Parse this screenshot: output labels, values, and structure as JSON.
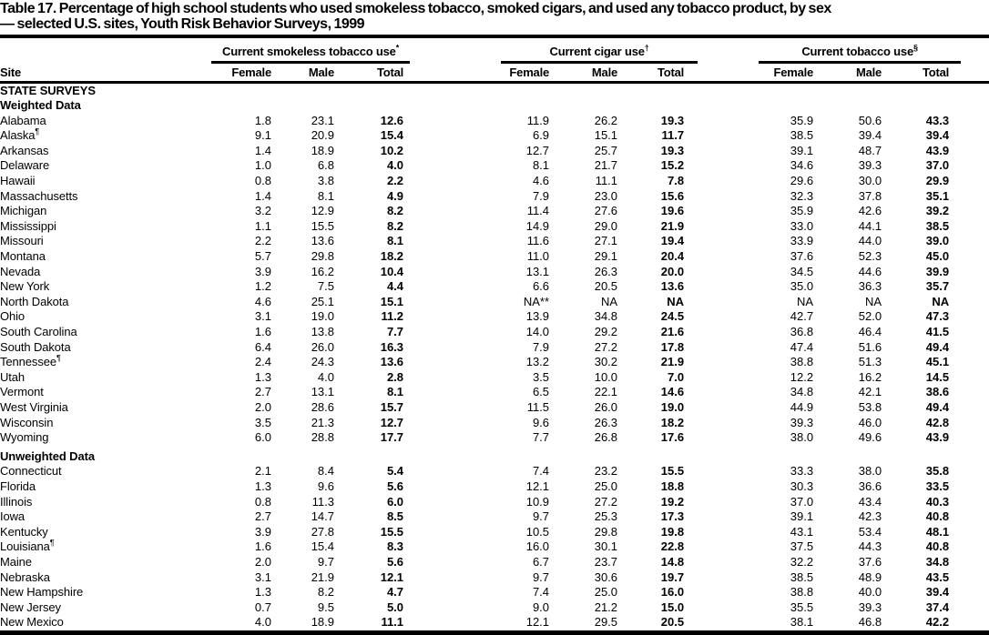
{
  "title": {
    "line1": "Table 17. Percentage of high school students who used smokeless tobacco, smoked cigars, and used any tobacco product, by sex",
    "line2": "— selected U.S. sites, Youth Risk Behavior Surveys, 1999"
  },
  "colors": {
    "text": "#000000",
    "background": "#ffffff",
    "rule": "#000000"
  },
  "table": {
    "site_header": "Site",
    "col_headers": [
      "Female",
      "Male",
      "Total"
    ],
    "groups": [
      {
        "label": "Current smokeless tobacco use",
        "sup": "*"
      },
      {
        "label": "Current cigar use",
        "sup": "†"
      },
      {
        "label": "Current tobacco use",
        "sup": "§"
      }
    ],
    "sections": [
      {
        "label": "STATE SURVEYS",
        "rows": []
      },
      {
        "label": "Weighted Data",
        "rows": [
          {
            "site": "Alabama",
            "site_sup": "",
            "values": [
              "1.8",
              "23.1",
              "12.6",
              "11.9",
              "26.2",
              "19.3",
              "35.9",
              "50.6",
              "43.3"
            ]
          },
          {
            "site": "Alaska",
            "site_sup": "¶",
            "values": [
              "9.1",
              "20.9",
              "15.4",
              "6.9",
              "15.1",
              "11.7",
              "38.5",
              "39.4",
              "39.4"
            ]
          },
          {
            "site": "Arkansas",
            "site_sup": "",
            "values": [
              "1.4",
              "18.9",
              "10.2",
              "12.7",
              "25.7",
              "19.3",
              "39.1",
              "48.7",
              "43.9"
            ]
          },
          {
            "site": "Delaware",
            "site_sup": "",
            "values": [
              "1.0",
              "6.8",
              "4.0",
              "8.1",
              "21.7",
              "15.2",
              "34.6",
              "39.3",
              "37.0"
            ]
          },
          {
            "site": "Hawaii",
            "site_sup": "",
            "values": [
              "0.8",
              "3.8",
              "2.2",
              "4.6",
              "11.1",
              "7.8",
              "29.6",
              "30.0",
              "29.9"
            ]
          },
          {
            "site": "Massachusetts",
            "site_sup": "",
            "values": [
              "1.4",
              "8.1",
              "4.9",
              "7.9",
              "23.0",
              "15.6",
              "32.3",
              "37.8",
              "35.1"
            ]
          },
          {
            "site": "Michigan",
            "site_sup": "",
            "values": [
              "3.2",
              "12.9",
              "8.2",
              "11.4",
              "27.6",
              "19.6",
              "35.9",
              "42.6",
              "39.2"
            ]
          },
          {
            "site": "Mississippi",
            "site_sup": "",
            "values": [
              "1.1",
              "15.5",
              "8.2",
              "14.9",
              "29.0",
              "21.9",
              "33.0",
              "44.1",
              "38.5"
            ]
          },
          {
            "site": "Missouri",
            "site_sup": "",
            "values": [
              "2.2",
              "13.6",
              "8.1",
              "11.6",
              "27.1",
              "19.4",
              "33.9",
              "44.0",
              "39.0"
            ]
          },
          {
            "site": "Montana",
            "site_sup": "",
            "values": [
              "5.7",
              "29.8",
              "18.2",
              "11.0",
              "29.1",
              "20.4",
              "37.6",
              "52.3",
              "45.0"
            ]
          },
          {
            "site": "Nevada",
            "site_sup": "",
            "values": [
              "3.9",
              "16.2",
              "10.4",
              "13.1",
              "26.3",
              "20.0",
              "34.5",
              "44.6",
              "39.9"
            ]
          },
          {
            "site": "New York",
            "site_sup": "",
            "values": [
              "1.2",
              "7.5",
              "4.4",
              "6.6",
              "20.5",
              "13.6",
              "35.0",
              "36.3",
              "35.7"
            ]
          },
          {
            "site": "North Dakota",
            "site_sup": "",
            "values": [
              "4.6",
              "25.1",
              "15.1",
              "NA**",
              "NA",
              "NA",
              "NA",
              "NA",
              "NA"
            ]
          },
          {
            "site": "Ohio",
            "site_sup": "",
            "values": [
              "3.1",
              "19.0",
              "11.2",
              "13.9",
              "34.8",
              "24.5",
              "42.7",
              "52.0",
              "47.3"
            ]
          },
          {
            "site": "South Carolina",
            "site_sup": "",
            "values": [
              "1.6",
              "13.8",
              "7.7",
              "14.0",
              "29.2",
              "21.6",
              "36.8",
              "46.4",
              "41.5"
            ]
          },
          {
            "site": "South Dakota",
            "site_sup": "",
            "values": [
              "6.4",
              "26.0",
              "16.3",
              "7.9",
              "27.2",
              "17.8",
              "47.4",
              "51.6",
              "49.4"
            ]
          },
          {
            "site": "Tennessee",
            "site_sup": "¶",
            "values": [
              "2.4",
              "24.3",
              "13.6",
              "13.2",
              "30.2",
              "21.9",
              "38.8",
              "51.3",
              "45.1"
            ]
          },
          {
            "site": "Utah",
            "site_sup": "",
            "values": [
              "1.3",
              "4.0",
              "2.8",
              "3.5",
              "10.0",
              "7.0",
              "12.2",
              "16.2",
              "14.5"
            ]
          },
          {
            "site": "Vermont",
            "site_sup": "",
            "values": [
              "2.7",
              "13.1",
              "8.1",
              "6.5",
              "22.1",
              "14.6",
              "34.8",
              "42.1",
              "38.6"
            ]
          },
          {
            "site": "West Virginia",
            "site_sup": "",
            "values": [
              "2.0",
              "28.6",
              "15.7",
              "11.5",
              "26.0",
              "19.0",
              "44.9",
              "53.8",
              "49.4"
            ]
          },
          {
            "site": "Wisconsin",
            "site_sup": "",
            "values": [
              "3.5",
              "21.3",
              "12.7",
              "9.6",
              "26.3",
              "18.2",
              "39.3",
              "46.0",
              "42.8"
            ]
          },
          {
            "site": "Wyoming",
            "site_sup": "",
            "values": [
              "6.0",
              "28.8",
              "17.7",
              "7.7",
              "26.8",
              "17.6",
              "38.0",
              "49.6",
              "43.9"
            ]
          }
        ]
      },
      {
        "label": "Unweighted Data",
        "rows": [
          {
            "site": "Connecticut",
            "site_sup": "",
            "values": [
              "2.1",
              "8.4",
              "5.4",
              "7.4",
              "23.2",
              "15.5",
              "33.3",
              "38.0",
              "35.8"
            ]
          },
          {
            "site": "Florida",
            "site_sup": "",
            "values": [
              "1.3",
              "9.6",
              "5.6",
              "12.1",
              "25.0",
              "18.8",
              "30.3",
              "36.6",
              "33.5"
            ]
          },
          {
            "site": "Illinois",
            "site_sup": "",
            "values": [
              "0.8",
              "11.3",
              "6.0",
              "10.9",
              "27.2",
              "19.2",
              "37.0",
              "43.4",
              "40.3"
            ]
          },
          {
            "site": "Iowa",
            "site_sup": "",
            "values": [
              "2.7",
              "14.7",
              "8.5",
              "9.7",
              "25.3",
              "17.3",
              "39.1",
              "42.3",
              "40.8"
            ]
          },
          {
            "site": "Kentucky",
            "site_sup": "",
            "values": [
              "3.9",
              "27.8",
              "15.5",
              "10.5",
              "29.8",
              "19.8",
              "43.1",
              "53.4",
              "48.1"
            ]
          },
          {
            "site": "Louisiana",
            "site_sup": "¶",
            "values": [
              "1.6",
              "15.4",
              "8.3",
              "16.0",
              "30.1",
              "22.8",
              "37.5",
              "44.3",
              "40.8"
            ]
          },
          {
            "site": "Maine",
            "site_sup": "",
            "values": [
              "2.0",
              "9.7",
              "5.6",
              "6.7",
              "23.7",
              "14.8",
              "32.2",
              "37.6",
              "34.8"
            ]
          },
          {
            "site": "Nebraska",
            "site_sup": "",
            "values": [
              "3.1",
              "21.9",
              "12.1",
              "9.7",
              "30.6",
              "19.7",
              "38.5",
              "48.9",
              "43.5"
            ]
          },
          {
            "site": "New Hampshire",
            "site_sup": "",
            "values": [
              "1.3",
              "8.2",
              "4.7",
              "7.4",
              "25.0",
              "16.0",
              "38.8",
              "40.0",
              "39.4"
            ]
          },
          {
            "site": "New Jersey",
            "site_sup": "",
            "values": [
              "0.7",
              "9.5",
              "5.0",
              "9.0",
              "21.2",
              "15.0",
              "35.5",
              "39.3",
              "37.4"
            ]
          },
          {
            "site": "New Mexico",
            "site_sup": "",
            "values": [
              "4.0",
              "18.9",
              "11.1",
              "12.1",
              "29.5",
              "20.5",
              "38.1",
              "46.8",
              "42.2"
            ]
          }
        ]
      }
    ]
  }
}
